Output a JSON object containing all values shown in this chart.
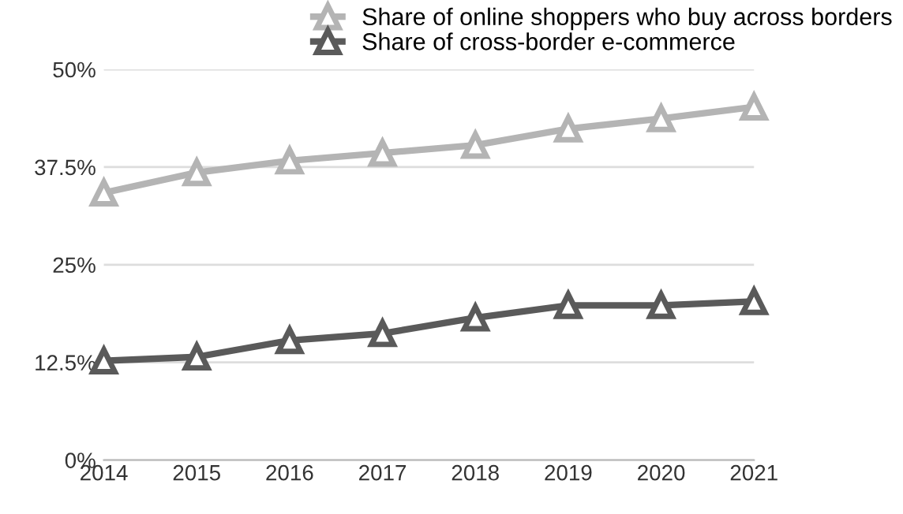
{
  "chart_data": {
    "type": "line",
    "x": [
      2014,
      2015,
      2016,
      2017,
      2018,
      2019,
      2020,
      2021
    ],
    "series": [
      {
        "name": "Share of online shoppers who buy across borders",
        "color": "#b4b4b4",
        "values": [
          34.2,
          36.8,
          38.3,
          39.3,
          40.3,
          42.4,
          43.7,
          45.2
        ]
      },
      {
        "name": "Share of cross-border e-commerce",
        "color": "#5a5a5a",
        "values": [
          12.7,
          13.2,
          15.3,
          16.2,
          18.2,
          19.8,
          19.8,
          20.3
        ]
      }
    ],
    "xlim": [
      2014,
      2021
    ],
    "xticks": [
      2014,
      2015,
      2016,
      2017,
      2018,
      2019,
      2020,
      2021
    ],
    "ylim": [
      0,
      50
    ],
    "yticks": [
      {
        "value": 0,
        "label": "0%"
      },
      {
        "value": 12.5,
        "label": "12.5%"
      },
      {
        "value": 25,
        "label": "25%"
      },
      {
        "value": 37.5,
        "label": "37.5%"
      },
      {
        "value": 50,
        "label": "50%"
      }
    ],
    "grid": "y",
    "legend": "top",
    "marker": "triangle",
    "line_style": "solid"
  }
}
